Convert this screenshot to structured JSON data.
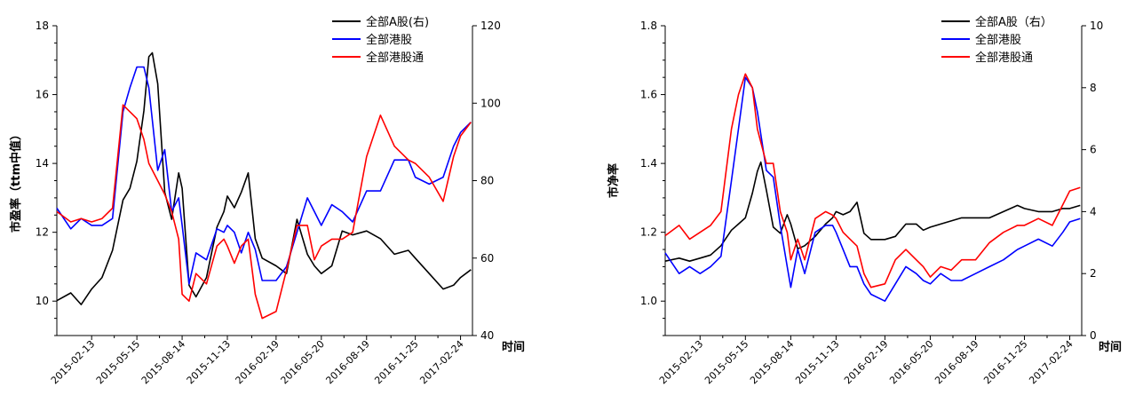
{
  "chart_data": [
    {
      "type": "line",
      "ylabel": "市盈率（ttm中值）",
      "xlabel": "时间",
      "ylim": [
        9,
        18
      ],
      "yticks": [
        10,
        12,
        14,
        16,
        18
      ],
      "y2lim": [
        40,
        120
      ],
      "y2ticks": [
        40,
        60,
        80,
        100,
        120
      ],
      "xlim": [
        "2014-12-05",
        "2017-03-20"
      ],
      "x_ticklabels": [
        "2015-02-13",
        "2015-05-15",
        "2015-08-14",
        "2015-11-13",
        "2016-02-19",
        "2016-05-20",
        "2016-08-19",
        "2016-11-25",
        "2017-02-24"
      ],
      "legend_position": "top-right",
      "series": [
        {
          "name": "全部A股(右)",
          "axis": "right",
          "color": "#000000",
          "x": [
            "2014-12-05",
            "2015-01-02",
            "2015-01-23",
            "2015-02-13",
            "2015-03-06",
            "2015-03-27",
            "2015-04-17",
            "2015-05-01",
            "2015-05-15",
            "2015-05-29",
            "2015-06-08",
            "2015-06-15",
            "2015-06-26",
            "2015-07-10",
            "2015-07-24",
            "2015-08-07",
            "2015-08-14",
            "2015-08-28",
            "2015-09-11",
            "2015-10-02",
            "2015-10-23",
            "2015-11-06",
            "2015-11-13",
            "2015-11-27",
            "2015-12-11",
            "2015-12-25",
            "2016-01-08",
            "2016-01-22",
            "2016-02-19",
            "2016-03-11",
            "2016-04-01",
            "2016-04-22",
            "2016-05-06",
            "2016-05-20",
            "2016-06-10",
            "2016-07-01",
            "2016-07-22",
            "2016-08-19",
            "2016-09-16",
            "2016-10-14",
            "2016-11-11",
            "2016-11-25",
            "2016-12-23",
            "2017-01-20",
            "2017-02-10",
            "2017-02-24",
            "2017-03-17"
          ],
          "values": [
            49,
            51,
            48,
            52,
            55,
            62,
            75,
            78,
            85,
            98,
            112,
            113,
            105,
            77,
            70,
            82,
            78,
            53,
            50,
            55,
            68,
            72,
            76,
            73,
            77,
            82,
            65,
            60,
            58,
            56,
            70,
            61,
            58,
            56,
            58,
            67,
            66,
            67,
            65,
            61,
            62,
            60,
            56,
            52,
            53,
            55,
            57
          ]
        },
        {
          "name": "全部港股",
          "axis": "left",
          "color": "#0000ff",
          "x": [
            "2014-12-05",
            "2015-01-02",
            "2015-01-23",
            "2015-02-13",
            "2015-03-06",
            "2015-03-27",
            "2015-04-17",
            "2015-05-01",
            "2015-05-15",
            "2015-05-29",
            "2015-06-08",
            "2015-06-26",
            "2015-07-10",
            "2015-07-24",
            "2015-08-07",
            "2015-08-14",
            "2015-08-28",
            "2015-09-11",
            "2015-10-02",
            "2015-10-23",
            "2015-11-06",
            "2015-11-13",
            "2015-11-27",
            "2015-12-11",
            "2015-12-25",
            "2016-01-08",
            "2016-01-22",
            "2016-02-19",
            "2016-03-11",
            "2016-04-01",
            "2016-04-22",
            "2016-05-06",
            "2016-05-20",
            "2016-06-10",
            "2016-07-01",
            "2016-07-22",
            "2016-08-19",
            "2016-09-16",
            "2016-10-14",
            "2016-11-11",
            "2016-11-25",
            "2016-12-23",
            "2017-01-20",
            "2017-02-10",
            "2017-02-24",
            "2017-03-17"
          ],
          "values": [
            12.7,
            12.1,
            12.4,
            12.2,
            12.2,
            12.4,
            15.5,
            16.2,
            16.8,
            16.8,
            16.2,
            13.8,
            14.4,
            12.6,
            13.0,
            12.2,
            10.5,
            11.4,
            11.2,
            12.1,
            12.0,
            12.2,
            12.0,
            11.4,
            12.0,
            11.5,
            10.6,
            10.6,
            11.0,
            12.0,
            13.0,
            12.6,
            12.2,
            12.8,
            12.6,
            12.3,
            13.2,
            13.2,
            14.1,
            14.1,
            13.6,
            13.4,
            13.6,
            14.5,
            14.9,
            15.2
          ]
        },
        {
          "name": "全部港股通",
          "axis": "left",
          "color": "#ff0000",
          "x": [
            "2014-12-05",
            "2015-01-02",
            "2015-01-23",
            "2015-02-13",
            "2015-03-06",
            "2015-03-27",
            "2015-04-17",
            "2015-05-01",
            "2015-05-15",
            "2015-05-29",
            "2015-06-08",
            "2015-06-26",
            "2015-07-10",
            "2015-07-24",
            "2015-08-07",
            "2015-08-14",
            "2015-08-28",
            "2015-09-11",
            "2015-10-02",
            "2015-10-23",
            "2015-11-06",
            "2015-11-13",
            "2015-11-27",
            "2015-12-11",
            "2015-12-25",
            "2016-01-08",
            "2016-01-22",
            "2016-02-19",
            "2016-03-11",
            "2016-04-01",
            "2016-04-22",
            "2016-05-06",
            "2016-05-20",
            "2016-06-10",
            "2016-07-01",
            "2016-07-22",
            "2016-08-19",
            "2016-09-16",
            "2016-10-14",
            "2016-11-11",
            "2016-11-25",
            "2016-12-23",
            "2017-01-20",
            "2017-02-10",
            "2017-02-24",
            "2017-03-17"
          ],
          "values": [
            12.6,
            12.3,
            12.4,
            12.3,
            12.4,
            12.7,
            15.7,
            15.5,
            15.3,
            14.7,
            14.0,
            13.5,
            13.1,
            12.6,
            11.8,
            10.2,
            10.0,
            10.8,
            10.5,
            11.6,
            11.8,
            11.6,
            11.1,
            11.6,
            11.8,
            10.2,
            9.5,
            9.7,
            10.9,
            12.2,
            12.2,
            11.2,
            11.6,
            11.8,
            11.8,
            12.0,
            14.2,
            15.4,
            14.5,
            14.1,
            14.0,
            13.6,
            12.9,
            14.2,
            14.8,
            15.2
          ]
        }
      ]
    },
    {
      "type": "line",
      "ylabel": "市净率",
      "xlabel": "时间",
      "ylim": [
        0.9,
        1.8
      ],
      "yticks": [
        1.0,
        1.2,
        1.4,
        1.6,
        1.8
      ],
      "y2lim": [
        0,
        10
      ],
      "y2ticks": [
        0,
        2,
        4,
        6,
        8,
        10
      ],
      "xlim": [
        "2014-12-05",
        "2017-03-20"
      ],
      "x_ticklabels": [
        "2015-02-13",
        "2015-05-15",
        "2015-08-14",
        "2015-11-13",
        "2016-02-19",
        "2016-05-20",
        "2016-08-19",
        "2016-11-25",
        "2017-02-24"
      ],
      "legend_position": "top-right",
      "series": [
        {
          "name": "全部A股（右）",
          "axis": "right",
          "color": "#000000",
          "x": [
            "2014-12-05",
            "2015-01-02",
            "2015-01-23",
            "2015-02-13",
            "2015-03-06",
            "2015-03-27",
            "2015-04-17",
            "2015-05-01",
            "2015-05-15",
            "2015-05-29",
            "2015-06-08",
            "2015-06-15",
            "2015-06-26",
            "2015-07-10",
            "2015-07-24",
            "2015-08-07",
            "2015-08-14",
            "2015-08-28",
            "2015-09-11",
            "2015-10-02",
            "2015-10-23",
            "2015-11-06",
            "2015-11-13",
            "2015-11-27",
            "2015-12-11",
            "2015-12-25",
            "2016-01-08",
            "2016-01-22",
            "2016-02-19",
            "2016-03-11",
            "2016-04-01",
            "2016-04-22",
            "2016-05-06",
            "2016-05-20",
            "2016-06-10",
            "2016-07-01",
            "2016-07-22",
            "2016-08-19",
            "2016-09-16",
            "2016-10-14",
            "2016-11-11",
            "2016-11-25",
            "2016-12-23",
            "2017-01-20",
            "2017-02-10",
            "2017-02-24",
            "2017-03-17"
          ],
          "values": [
            2.4,
            2.5,
            2.4,
            2.5,
            2.6,
            2.9,
            3.4,
            3.6,
            3.8,
            4.6,
            5.3,
            5.6,
            4.7,
            3.5,
            3.3,
            3.9,
            3.6,
            2.8,
            2.9,
            3.2,
            3.6,
            3.8,
            4.0,
            3.9,
            4.0,
            4.3,
            3.3,
            3.1,
            3.1,
            3.2,
            3.6,
            3.6,
            3.4,
            3.5,
            3.6,
            3.7,
            3.8,
            3.8,
            3.8,
            4.0,
            4.2,
            4.1,
            4.0,
            4.0,
            4.1,
            4.1,
            4.2
          ]
        },
        {
          "name": "全部港股",
          "axis": "left",
          "color": "#0000ff",
          "x": [
            "2014-12-05",
            "2015-01-02",
            "2015-01-23",
            "2015-02-13",
            "2015-03-06",
            "2015-03-27",
            "2015-04-17",
            "2015-05-01",
            "2015-05-15",
            "2015-05-29",
            "2015-06-08",
            "2015-06-26",
            "2015-07-10",
            "2015-07-24",
            "2015-08-07",
            "2015-08-14",
            "2015-08-28",
            "2015-09-11",
            "2015-10-02",
            "2015-10-23",
            "2015-11-06",
            "2015-11-13",
            "2015-11-27",
            "2015-12-11",
            "2015-12-25",
            "2016-01-08",
            "2016-01-22",
            "2016-02-19",
            "2016-03-11",
            "2016-04-01",
            "2016-04-22",
            "2016-05-06",
            "2016-05-20",
            "2016-06-10",
            "2016-07-01",
            "2016-07-22",
            "2016-08-19",
            "2016-09-16",
            "2016-10-14",
            "2016-11-11",
            "2016-11-25",
            "2016-12-23",
            "2017-01-20",
            "2017-02-10",
            "2017-02-24",
            "2017-03-17"
          ],
          "values": [
            1.14,
            1.08,
            1.1,
            1.08,
            1.1,
            1.13,
            1.35,
            1.5,
            1.65,
            1.62,
            1.55,
            1.38,
            1.36,
            1.22,
            1.1,
            1.04,
            1.15,
            1.08,
            1.2,
            1.22,
            1.22,
            1.2,
            1.15,
            1.1,
            1.1,
            1.05,
            1.02,
            1.0,
            1.05,
            1.1,
            1.08,
            1.06,
            1.05,
            1.08,
            1.06,
            1.06,
            1.08,
            1.1,
            1.12,
            1.15,
            1.16,
            1.18,
            1.16,
            1.2,
            1.23,
            1.24
          ]
        },
        {
          "name": "全部港股通",
          "axis": "left",
          "color": "#ff0000",
          "x": [
            "2014-12-05",
            "2015-01-02",
            "2015-01-23",
            "2015-02-13",
            "2015-03-06",
            "2015-03-27",
            "2015-04-17",
            "2015-05-01",
            "2015-05-15",
            "2015-05-29",
            "2015-06-08",
            "2015-06-26",
            "2015-07-10",
            "2015-07-24",
            "2015-08-07",
            "2015-08-14",
            "2015-08-28",
            "2015-09-11",
            "2015-10-02",
            "2015-10-23",
            "2015-11-06",
            "2015-11-13",
            "2015-11-27",
            "2015-12-11",
            "2015-12-25",
            "2016-01-08",
            "2016-01-22",
            "2016-02-19",
            "2016-03-11",
            "2016-04-01",
            "2016-04-22",
            "2016-05-06",
            "2016-05-20",
            "2016-06-10",
            "2016-07-01",
            "2016-07-22",
            "2016-08-19",
            "2016-09-16",
            "2016-10-14",
            "2016-11-11",
            "2016-11-25",
            "2016-12-23",
            "2017-01-20",
            "2017-02-10",
            "2017-02-24",
            "2017-03-17"
          ],
          "values": [
            1.19,
            1.22,
            1.18,
            1.2,
            1.22,
            1.26,
            1.5,
            1.6,
            1.66,
            1.62,
            1.5,
            1.4,
            1.4,
            1.26,
            1.2,
            1.12,
            1.18,
            1.12,
            1.24,
            1.26,
            1.25,
            1.24,
            1.2,
            1.18,
            1.16,
            1.08,
            1.04,
            1.05,
            1.12,
            1.15,
            1.12,
            1.1,
            1.07,
            1.1,
            1.09,
            1.12,
            1.12,
            1.17,
            1.2,
            1.22,
            1.22,
            1.24,
            1.22,
            1.28,
            1.32,
            1.33
          ]
        }
      ]
    }
  ]
}
